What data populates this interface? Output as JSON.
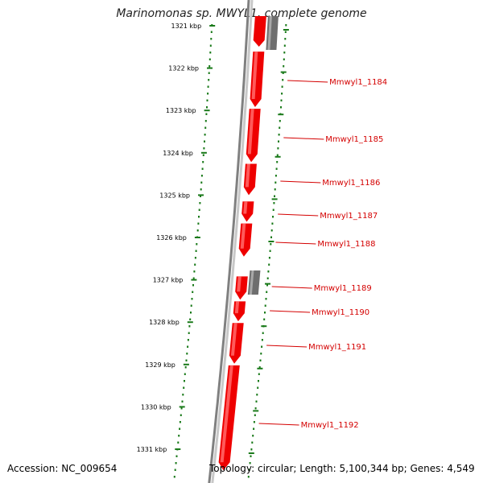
{
  "title": "Marinomonas sp. MWYL1, complete genome",
  "footer": {
    "accession": "Accession: NC_009654",
    "summary": "Topology: circular; Length: 5,100,344 bp; Genes: 4,549"
  },
  "scale_ticks": [
    {
      "label": "1321 kbp",
      "kbp": 1321
    },
    {
      "label": "1322 kbp",
      "kbp": 1322
    },
    {
      "label": "1323 kbp",
      "kbp": 1323
    },
    {
      "label": "1324 kbp",
      "kbp": 1324
    },
    {
      "label": "1325 kbp",
      "kbp": 1325
    },
    {
      "label": "1326 kbp",
      "kbp": 1326
    },
    {
      "label": "1327 kbp",
      "kbp": 1327
    },
    {
      "label": "1328 kbp",
      "kbp": 1328
    },
    {
      "label": "1329 kbp",
      "kbp": 1329
    },
    {
      "label": "1330 kbp",
      "kbp": 1330
    },
    {
      "label": "1331 kbp",
      "kbp": 1331
    }
  ],
  "genes": [
    {
      "label": "Mmwyl1_1184",
      "start": 1321.61,
      "end": 1322.92
    },
    {
      "label": "Mmwyl1_1185",
      "start": 1322.96,
      "end": 1324.22
    },
    {
      "label": "Mmwyl1_1186",
      "start": 1324.26,
      "end": 1325.0
    },
    {
      "label": "Mmwyl1_1187",
      "start": 1325.15,
      "end": 1325.63
    },
    {
      "label": "Mmwyl1_1188",
      "start": 1325.67,
      "end": 1326.45
    },
    {
      "label": "Mmwyl1_1189",
      "start": 1326.92,
      "end": 1327.47
    },
    {
      "label": "Mmwyl1_1190",
      "start": 1327.51,
      "end": 1327.98
    },
    {
      "label": "Mmwyl1_1191",
      "start": 1328.02,
      "end": 1328.98
    },
    {
      "label": "Mmwyl1_1192",
      "start": 1329.02,
      "end": 1331.5
    }
  ],
  "colors": {
    "gene_forward": "#ee0000",
    "gene_other": "#6e6e6e",
    "backbone": "#808080",
    "scale_ticks": "#1a7a1a",
    "gene_label": "#d40000"
  }
}
